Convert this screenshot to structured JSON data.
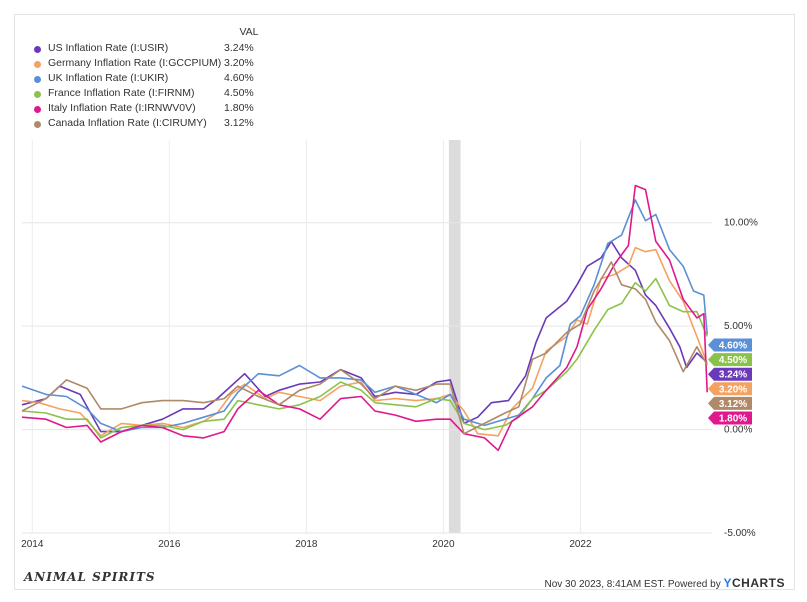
{
  "chart_data": {
    "type": "line",
    "value_header": "VAL",
    "ylim": [
      -5,
      14
    ],
    "y_ticks": [
      {
        "value": 10,
        "label": "10.00%"
      },
      {
        "value": 5,
        "label": "5.00%"
      },
      {
        "value": 0,
        "label": "0.00%"
      },
      {
        "value": -5,
        "label": "-5.00%"
      }
    ],
    "x_ticks": [
      {
        "value": 2014,
        "label": "2014"
      },
      {
        "value": 2016,
        "label": "2016"
      },
      {
        "value": 2018,
        "label": "2018"
      },
      {
        "value": 2020,
        "label": "2020"
      },
      {
        "value": 2022,
        "label": "2022"
      }
    ],
    "xlim": [
      2013.85,
      2023.92
    ],
    "recession_band": [
      2020.08,
      2020.25
    ],
    "series": [
      {
        "name": "US Inflation Rate (I:USIR)",
        "value_label": "3.24%",
        "color": "#6a3ab8",
        "last": 3.24,
        "points": [
          [
            2013.85,
            1.2
          ],
          [
            2014.2,
            1.5
          ],
          [
            2014.4,
            2.1
          ],
          [
            2014.7,
            1.7
          ],
          [
            2015.0,
            -0.1
          ],
          [
            2015.3,
            -0.1
          ],
          [
            2015.6,
            0.2
          ],
          [
            2015.9,
            0.5
          ],
          [
            2016.2,
            1.0
          ],
          [
            2016.5,
            1.0
          ],
          [
            2016.7,
            1.5
          ],
          [
            2016.9,
            2.1
          ],
          [
            2017.1,
            2.7
          ],
          [
            2017.4,
            1.6
          ],
          [
            2017.6,
            1.9
          ],
          [
            2017.9,
            2.2
          ],
          [
            2018.2,
            2.3
          ],
          [
            2018.5,
            2.9
          ],
          [
            2018.8,
            2.5
          ],
          [
            2019.0,
            1.6
          ],
          [
            2019.3,
            1.8
          ],
          [
            2019.6,
            1.7
          ],
          [
            2019.9,
            2.3
          ],
          [
            2020.1,
            2.4
          ],
          [
            2020.3,
            0.3
          ],
          [
            2020.5,
            0.6
          ],
          [
            2020.7,
            1.3
          ],
          [
            2020.95,
            1.4
          ],
          [
            2021.2,
            2.6
          ],
          [
            2021.35,
            4.2
          ],
          [
            2021.5,
            5.4
          ],
          [
            2021.8,
            6.2
          ],
          [
            2021.95,
            7.0
          ],
          [
            2022.1,
            7.9
          ],
          [
            2022.3,
            8.3
          ],
          [
            2022.45,
            9.1
          ],
          [
            2022.6,
            8.3
          ],
          [
            2022.8,
            7.7
          ],
          [
            2022.95,
            6.5
          ],
          [
            2023.1,
            6.0
          ],
          [
            2023.3,
            4.9
          ],
          [
            2023.45,
            4.0
          ],
          [
            2023.55,
            3.0
          ],
          [
            2023.7,
            3.7
          ],
          [
            2023.85,
            3.24
          ]
        ]
      },
      {
        "name": "Germany Inflation Rate (I:GCCPIUM)",
        "value_label": "3.20%",
        "color": "#f4a261",
        "last": 3.2,
        "points": [
          [
            2013.85,
            1.4
          ],
          [
            2014.1,
            1.3
          ],
          [
            2014.4,
            1.0
          ],
          [
            2014.7,
            0.8
          ],
          [
            2015.0,
            -0.3
          ],
          [
            2015.3,
            0.3
          ],
          [
            2015.6,
            0.2
          ],
          [
            2015.9,
            0.3
          ],
          [
            2016.2,
            0.1
          ],
          [
            2016.5,
            0.4
          ],
          [
            2016.7,
            0.8
          ],
          [
            2016.9,
            1.7
          ],
          [
            2017.1,
            2.2
          ],
          [
            2017.4,
            1.5
          ],
          [
            2017.6,
            1.8
          ],
          [
            2017.9,
            1.6
          ],
          [
            2018.2,
            1.4
          ],
          [
            2018.5,
            2.1
          ],
          [
            2018.8,
            2.3
          ],
          [
            2019.0,
            1.4
          ],
          [
            2019.3,
            1.5
          ],
          [
            2019.6,
            1.4
          ],
          [
            2019.9,
            1.5
          ],
          [
            2020.1,
            1.7
          ],
          [
            2020.3,
            0.9
          ],
          [
            2020.5,
            -0.2
          ],
          [
            2020.8,
            -0.3
          ],
          [
            2021.0,
            1.0
          ],
          [
            2021.3,
            2.0
          ],
          [
            2021.5,
            3.8
          ],
          [
            2021.8,
            4.5
          ],
          [
            2021.95,
            5.3
          ],
          [
            2022.1,
            5.1
          ],
          [
            2022.3,
            7.3
          ],
          [
            2022.5,
            7.5
          ],
          [
            2022.7,
            7.9
          ],
          [
            2022.8,
            8.8
          ],
          [
            2022.95,
            8.6
          ],
          [
            2023.1,
            8.7
          ],
          [
            2023.3,
            7.2
          ],
          [
            2023.5,
            6.2
          ],
          [
            2023.7,
            4.5
          ],
          [
            2023.85,
            3.2
          ]
        ]
      },
      {
        "name": "UK Inflation Rate (I:UKIR)",
        "value_label": "4.60%",
        "color": "#5b8fd6",
        "last": 4.6,
        "points": [
          [
            2013.85,
            2.1
          ],
          [
            2014.2,
            1.7
          ],
          [
            2014.5,
            1.6
          ],
          [
            2014.8,
            1.0
          ],
          [
            2015.0,
            0.3
          ],
          [
            2015.3,
            -0.1
          ],
          [
            2015.6,
            0.1
          ],
          [
            2015.9,
            0.1
          ],
          [
            2016.2,
            0.3
          ],
          [
            2016.5,
            0.6
          ],
          [
            2016.8,
            0.9
          ],
          [
            2017.0,
            1.8
          ],
          [
            2017.3,
            2.7
          ],
          [
            2017.6,
            2.6
          ],
          [
            2017.9,
            3.1
          ],
          [
            2018.2,
            2.5
          ],
          [
            2018.5,
            2.5
          ],
          [
            2018.8,
            2.4
          ],
          [
            2019.0,
            1.8
          ],
          [
            2019.3,
            2.1
          ],
          [
            2019.6,
            1.7
          ],
          [
            2019.9,
            1.3
          ],
          [
            2020.1,
            1.7
          ],
          [
            2020.3,
            0.5
          ],
          [
            2020.6,
            0.2
          ],
          [
            2020.9,
            0.5
          ],
          [
            2021.1,
            0.7
          ],
          [
            2021.3,
            1.5
          ],
          [
            2021.5,
            2.5
          ],
          [
            2021.7,
            3.1
          ],
          [
            2021.85,
            5.1
          ],
          [
            2022.0,
            5.5
          ],
          [
            2022.2,
            7.0
          ],
          [
            2022.4,
            9.0
          ],
          [
            2022.6,
            9.4
          ],
          [
            2022.8,
            11.1
          ],
          [
            2022.95,
            10.1
          ],
          [
            2023.1,
            10.4
          ],
          [
            2023.3,
            8.7
          ],
          [
            2023.5,
            7.9
          ],
          [
            2023.65,
            6.7
          ],
          [
            2023.8,
            6.5
          ],
          [
            2023.85,
            4.6
          ]
        ]
      },
      {
        "name": "France Inflation Rate (I:FIRNM)",
        "value_label": "4.50%",
        "color": "#8bc34a",
        "last": 4.5,
        "points": [
          [
            2013.85,
            0.9
          ],
          [
            2014.2,
            0.8
          ],
          [
            2014.5,
            0.5
          ],
          [
            2014.8,
            0.5
          ],
          [
            2015.0,
            -0.4
          ],
          [
            2015.3,
            0.1
          ],
          [
            2015.6,
            0.2
          ],
          [
            2015.9,
            0.2
          ],
          [
            2016.2,
            0.0
          ],
          [
            2016.5,
            0.4
          ],
          [
            2016.8,
            0.5
          ],
          [
            2017.0,
            1.4
          ],
          [
            2017.3,
            1.2
          ],
          [
            2017.6,
            1.0
          ],
          [
            2017.9,
            1.2
          ],
          [
            2018.2,
            1.6
          ],
          [
            2018.5,
            2.3
          ],
          [
            2018.8,
            1.9
          ],
          [
            2019.0,
            1.3
          ],
          [
            2019.3,
            1.2
          ],
          [
            2019.6,
            1.1
          ],
          [
            2019.9,
            1.5
          ],
          [
            2020.1,
            1.4
          ],
          [
            2020.3,
            0.3
          ],
          [
            2020.6,
            0.0
          ],
          [
            2020.9,
            0.2
          ],
          [
            2021.1,
            0.6
          ],
          [
            2021.3,
            1.5
          ],
          [
            2021.5,
            1.9
          ],
          [
            2021.8,
            2.8
          ],
          [
            2021.95,
            3.4
          ],
          [
            2022.2,
            4.8
          ],
          [
            2022.4,
            5.8
          ],
          [
            2022.6,
            6.1
          ],
          [
            2022.8,
            7.1
          ],
          [
            2022.95,
            6.7
          ],
          [
            2023.1,
            7.3
          ],
          [
            2023.3,
            6.0
          ],
          [
            2023.5,
            5.7
          ],
          [
            2023.7,
            5.7
          ],
          [
            2023.85,
            4.5
          ]
        ]
      },
      {
        "name": "Italy Inflation Rate (I:IRNWV0V)",
        "value_label": "1.80%",
        "color": "#e0188c",
        "last": 1.8,
        "points": [
          [
            2013.85,
            0.6
          ],
          [
            2014.2,
            0.5
          ],
          [
            2014.5,
            0.1
          ],
          [
            2014.8,
            0.2
          ],
          [
            2015.0,
            -0.6
          ],
          [
            2015.3,
            -0.1
          ],
          [
            2015.6,
            0.2
          ],
          [
            2015.9,
            0.1
          ],
          [
            2016.2,
            -0.3
          ],
          [
            2016.5,
            -0.4
          ],
          [
            2016.8,
            -0.1
          ],
          [
            2017.0,
            1.0
          ],
          [
            2017.3,
            1.9
          ],
          [
            2017.6,
            1.2
          ],
          [
            2017.9,
            1.0
          ],
          [
            2018.2,
            0.5
          ],
          [
            2018.5,
            1.5
          ],
          [
            2018.8,
            1.6
          ],
          [
            2019.0,
            0.9
          ],
          [
            2019.3,
            0.7
          ],
          [
            2019.6,
            0.4
          ],
          [
            2019.9,
            0.5
          ],
          [
            2020.1,
            0.5
          ],
          [
            2020.3,
            -0.2
          ],
          [
            2020.6,
            -0.4
          ],
          [
            2020.8,
            -1.0
          ],
          [
            2021.0,
            0.4
          ],
          [
            2021.3,
            1.1
          ],
          [
            2021.5,
            1.9
          ],
          [
            2021.8,
            3.0
          ],
          [
            2021.95,
            4.0
          ],
          [
            2022.1,
            5.8
          ],
          [
            2022.3,
            6.8
          ],
          [
            2022.5,
            8.0
          ],
          [
            2022.7,
            8.9
          ],
          [
            2022.8,
            11.8
          ],
          [
            2022.95,
            11.6
          ],
          [
            2023.1,
            9.1
          ],
          [
            2023.3,
            8.2
          ],
          [
            2023.5,
            6.3
          ],
          [
            2023.7,
            5.4
          ],
          [
            2023.8,
            5.6
          ],
          [
            2023.85,
            1.8
          ]
        ]
      },
      {
        "name": "Canada Inflation Rate (I:CIRUMY)",
        "value_label": "3.12%",
        "color": "#b08968",
        "last": 3.12,
        "points": [
          [
            2013.85,
            0.9
          ],
          [
            2014.2,
            1.5
          ],
          [
            2014.5,
            2.4
          ],
          [
            2014.8,
            2.0
          ],
          [
            2015.0,
            1.0
          ],
          [
            2015.3,
            1.0
          ],
          [
            2015.6,
            1.3
          ],
          [
            2015.9,
            1.4
          ],
          [
            2016.2,
            1.4
          ],
          [
            2016.5,
            1.3
          ],
          [
            2016.8,
            1.5
          ],
          [
            2017.0,
            2.1
          ],
          [
            2017.3,
            1.6
          ],
          [
            2017.6,
            1.2
          ],
          [
            2017.9,
            1.9
          ],
          [
            2018.2,
            2.2
          ],
          [
            2018.5,
            2.9
          ],
          [
            2018.8,
            2.2
          ],
          [
            2019.0,
            1.5
          ],
          [
            2019.3,
            2.1
          ],
          [
            2019.6,
            1.9
          ],
          [
            2019.9,
            2.2
          ],
          [
            2020.1,
            2.2
          ],
          [
            2020.3,
            -0.2
          ],
          [
            2020.6,
            0.3
          ],
          [
            2020.9,
            0.8
          ],
          [
            2021.1,
            1.1
          ],
          [
            2021.3,
            3.4
          ],
          [
            2021.5,
            3.7
          ],
          [
            2021.8,
            4.7
          ],
          [
            2022.0,
            5.1
          ],
          [
            2022.2,
            6.7
          ],
          [
            2022.45,
            8.1
          ],
          [
            2022.6,
            7.0
          ],
          [
            2022.8,
            6.8
          ],
          [
            2022.95,
            6.3
          ],
          [
            2023.1,
            5.2
          ],
          [
            2023.3,
            4.3
          ],
          [
            2023.5,
            2.8
          ],
          [
            2023.7,
            4.0
          ],
          [
            2023.85,
            3.12
          ]
        ]
      }
    ],
    "badge_order": [
      "UK Inflation Rate (I:UKIR)",
      "France Inflation Rate (I:FIRNM)",
      "US Inflation Rate (I:USIR)",
      "Germany Inflation Rate (I:GCCPIUM)",
      "Canada Inflation Rate (I:CIRUMY)",
      "Italy Inflation Rate (I:IRNWV0V)"
    ]
  },
  "branding": {
    "logo_text": "ANIMAL SPIRITS",
    "timestamp": "Nov 30 2023, 8:41AM EST.",
    "powered_by": "Powered by",
    "ycharts_y": "Y",
    "ycharts_rest": "CHARTS"
  }
}
